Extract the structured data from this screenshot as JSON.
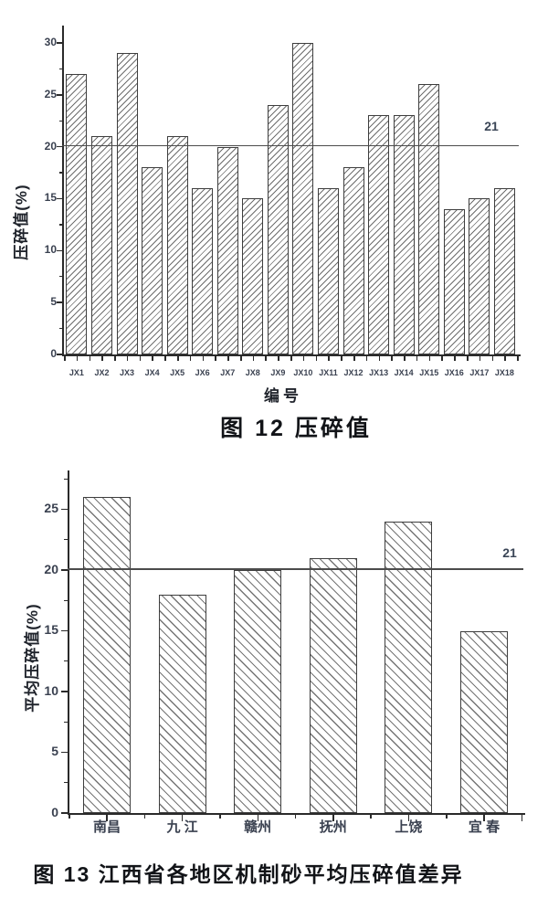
{
  "page": {
    "background": "#ffffff",
    "text_color": "#121418",
    "tick_label_color": "#3a4150",
    "bar_fill": "#ffffff",
    "bar_border": "#3e3e3e",
    "hatch_color": "#6e6e6e",
    "axis_color": "#2a2a2a",
    "reference_line_color": "#4c4c4c"
  },
  "chart_data": [
    {
      "id": "figure-12",
      "type": "bar",
      "title": "图 12  压碎值",
      "xlabel": "编号",
      "ylabel": "压碎值(%)",
      "categories": [
        "JX1",
        "JX2",
        "JX3",
        "JX4",
        "JX5",
        "JX6",
        "JX7",
        "JX8",
        "JX9",
        "JX10",
        "JX11",
        "JX12",
        "JX13",
        "JX14",
        "JX15",
        "JX16",
        "JX17",
        "JX18"
      ],
      "values": [
        27,
        21,
        29,
        18,
        21,
        16,
        20,
        15,
        24,
        30,
        16,
        18,
        23,
        23,
        26,
        14,
        15,
        16
      ],
      "ylim": [
        0,
        32
      ],
      "yticks": [
        0,
        5,
        10,
        15,
        20,
        25,
        30
      ],
      "grid": false,
      "legend": "none",
      "hatch": "forward-diagonal",
      "reference_line": {
        "value": 21,
        "label": "21"
      }
    },
    {
      "id": "figure-13",
      "type": "bar",
      "title": "图 13  江西省各地区机制砂平均压碎值差异",
      "xlabel": "",
      "ylabel": "平均压碎值(%)",
      "categories": [
        "南昌",
        "九 江",
        "赣州",
        "抚州",
        "上饶",
        "宜 春"
      ],
      "values": [
        26,
        18,
        20,
        21,
        24,
        15
      ],
      "ylim": [
        0,
        28
      ],
      "yticks": [
        0,
        5,
        10,
        15,
        20,
        25
      ],
      "grid": false,
      "legend": "none",
      "hatch": "backward-diagonal",
      "reference_line": {
        "value": 21,
        "label": "21"
      }
    }
  ]
}
